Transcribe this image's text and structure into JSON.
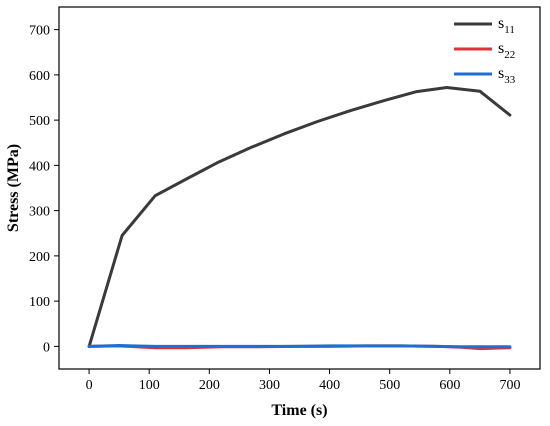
{
  "chart_data": {
    "type": "line",
    "title": "",
    "xlabel": "Time (s)",
    "ylabel": "Stress (MPa)",
    "xlim": [
      -50,
      750
    ],
    "ylim": [
      -50,
      750
    ],
    "xticks": [
      0,
      100,
      200,
      300,
      400,
      500,
      600,
      700
    ],
    "yticks": [
      0,
      100,
      200,
      300,
      400,
      500,
      600,
      700
    ],
    "grid": false,
    "legend_position": "top-right",
    "series": [
      {
        "name_base": "s",
        "name_sub": "11",
        "color": "#3a3a3a",
        "x": [
          0,
          55,
          110,
          165,
          215,
          270,
          325,
          380,
          435,
          490,
          545,
          595,
          650,
          700
        ],
        "y": [
          0,
          245,
          333,
          372,
          407,
          440,
          470,
          497,
          521,
          543,
          563,
          572,
          564,
          511
        ]
      },
      {
        "name_base": "s",
        "name_sub": "22",
        "color": "#e0303a",
        "x": [
          0,
          50,
          110,
          160,
          220,
          280,
          340,
          400,
          460,
          520,
          580,
          620,
          650,
          700
        ],
        "y": [
          0,
          1,
          -3,
          -3,
          -1,
          -1,
          0,
          0,
          1,
          1,
          0,
          -2,
          -5,
          -3
        ]
      },
      {
        "name_base": "s",
        "name_sub": "33",
        "color": "#1f6fd1",
        "x": [
          0,
          50,
          110,
          160,
          220,
          280,
          340,
          400,
          460,
          520,
          580,
          620,
          650,
          700
        ],
        "y": [
          0,
          2,
          0,
          0,
          0,
          0,
          0,
          1,
          1,
          1,
          0,
          -1,
          -1,
          -1
        ]
      }
    ]
  }
}
